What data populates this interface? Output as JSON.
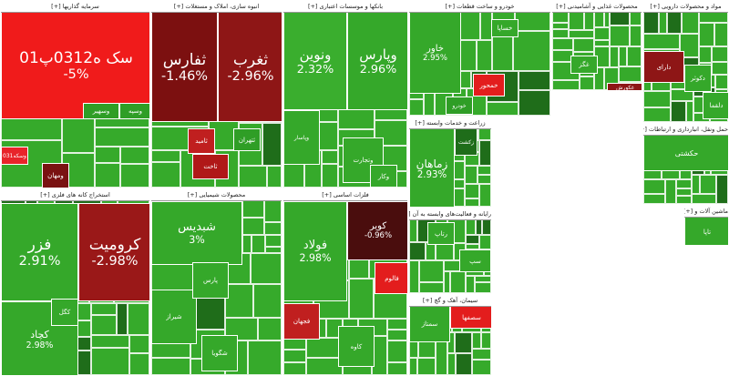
{
  "sectors": [
    {
      "title": "سرمایه گذاریها [+]",
      "tiles": [
        {
          "label": "سک ه0312پ01",
          "change": "-5%",
          "color": "#f01b1b"
        },
        {
          "label": "وسکه031",
          "color": "#e8242a"
        },
        {
          "label": "ومهان",
          "color": "#7a1212"
        },
        {
          "label": "وسهیر",
          "color": "#2f9e26"
        },
        {
          "label": "وسپه",
          "color": "#2f9e26"
        }
      ]
    },
    {
      "title": "انبوه سازی، املاک و مستغلات [+]",
      "tiles": [
        {
          "label": "ثغرب",
          "change": "-2.96%",
          "color": "#8e1616"
        },
        {
          "label": "ثفارس",
          "change": "-1.46%",
          "color": "#7c1010"
        },
        {
          "label": "ثامید",
          "color": "#c01f1f"
        },
        {
          "label": "ثاخت",
          "color": "#b01818"
        },
        {
          "label": "ثتهران",
          "color": "#2f9e26"
        }
      ]
    },
    {
      "title": "بانکها و موسسات اعتباری [+]",
      "tiles": [
        {
          "label": "وپارس",
          "change": "2.96%",
          "color": "#35a82a"
        },
        {
          "label": "ونوین",
          "change": "2.32%",
          "color": "#3aae2e"
        },
        {
          "label": "وپاسار",
          "color": "#35a82a"
        },
        {
          "label": "وتجارت",
          "color": "#35a82a"
        },
        {
          "label": "وکار",
          "color": "#35a82a"
        }
      ]
    },
    {
      "title": "خودرو و ساخت قطعات [+]",
      "tiles": [
        {
          "label": "خاور",
          "change": "2.95%",
          "color": "#35a82a"
        },
        {
          "label": "خساپا",
          "color": "#35a82a"
        },
        {
          "label": "خمحور",
          "color": "#e31d1d"
        },
        {
          "label": "خودرو",
          "color": "#2f9e26"
        }
      ]
    },
    {
      "title": "محصولات غذایی و آشامیدنی [+]",
      "tiles": [
        {
          "label": "غگز",
          "color": "#35a82a"
        },
        {
          "label": "غکورش",
          "color": "#8e1616"
        }
      ]
    },
    {
      "title": "مواد و محصولات دارویی [+]",
      "tiles": [
        {
          "label": "دارای",
          "color": "#8e1616"
        },
        {
          "label": "دلقما",
          "color": "#35a82a"
        },
        {
          "label": "دکوثر",
          "color": "#35a82a"
        }
      ]
    },
    {
      "title": "استخراج کانه های فلزی [+]",
      "tiles": [
        {
          "label": "کرومیت",
          "change": "-2.98%",
          "color": "#9a1818"
        },
        {
          "label": "فزر",
          "change": "2.91%",
          "color": "#35a82a"
        },
        {
          "label": "کچاد",
          "change": "2.98%",
          "color": "#35a82a"
        },
        {
          "label": "کگل",
          "color": "#35a82a"
        }
      ]
    },
    {
      "title": "محصولات شیمیایی [+]",
      "tiles": [
        {
          "label": "شبدیس",
          "change": "3%",
          "color": "#35a82a"
        },
        {
          "label": "شیراز",
          "color": "#35a82a"
        },
        {
          "label": "پارس",
          "color": "#35a82a"
        },
        {
          "label": "شگویا",
          "color": "#35a82a"
        }
      ]
    },
    {
      "title": "فلزات اساسی [+]",
      "tiles": [
        {
          "label": "فولاد",
          "change": "2.98%",
          "color": "#35a82a"
        },
        {
          "label": "کویر",
          "change": "-0.96%",
          "color": "#4a0d0d"
        },
        {
          "label": "فالوم",
          "color": "#e31d1d"
        },
        {
          "label": "فجهان",
          "color": "#c01f1f"
        },
        {
          "label": "کاوه",
          "color": "#35a82a"
        }
      ]
    },
    {
      "title": "زراعت و خدمات وابسته [+]",
      "tiles": [
        {
          "label": "زماهان",
          "change": "2.93%",
          "color": "#35a82a"
        },
        {
          "label": "زکشت",
          "color": "#1f6d1a"
        }
      ]
    },
    {
      "title": "رایانه و فعالیت‌های وابسته به آن [+]",
      "tiles": [
        {
          "label": "رتاپ",
          "color": "#35a82a"
        },
        {
          "label": "سپ",
          "color": "#35a82a"
        }
      ]
    },
    {
      "title": "سیمان، آهک و گچ [+]",
      "tiles": [
        {
          "label": "سمتاز",
          "color": "#35a82a"
        },
        {
          "label": "سصفها",
          "color": "#e31d1d"
        }
      ]
    },
    {
      "title": "حمل ونقل، انبارداری و ارتباطات [+]",
      "tiles": [
        {
          "label": "حکشتی",
          "color": "#35a82a"
        }
      ]
    },
    {
      "title": "ماشین آلات و [+]",
      "tiles": [
        {
          "label": "تاپا",
          "color": "#35a82a"
        }
      ]
    }
  ]
}
